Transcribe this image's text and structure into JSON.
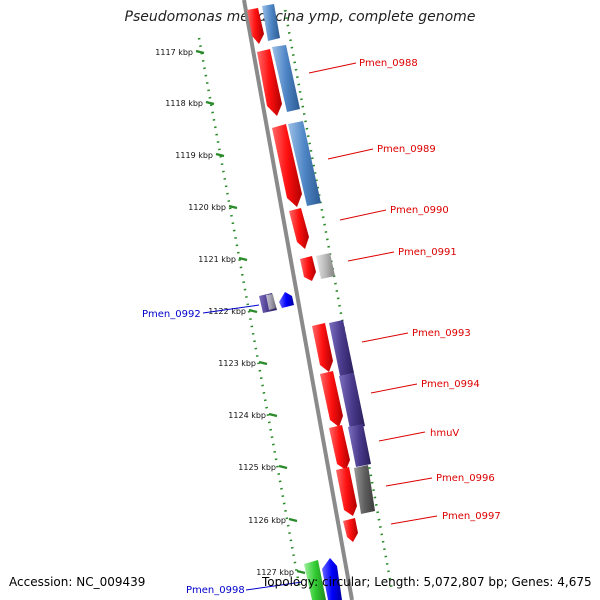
{
  "title": "Pseudomonas mendocina ymp, complete genome",
  "footer": {
    "accession": "Accession: NC_009439",
    "summary": "Topology: circular; Length: 5,072,807 bp; Genes: 4,675"
  },
  "colors": {
    "red": "#ff1a1a",
    "steelblue": "#4f86c6",
    "purple": "#4a3a8c",
    "gray": "#9e9e9e",
    "darkgray": "#606060",
    "blue": "#0000ff",
    "green": "#33cc33",
    "tick": "#2a8a2a",
    "backbone": "#888888",
    "label_red": "#dd0000",
    "label_blue": "#0000cc"
  },
  "ticks": [
    {
      "label": "1117 kbp"
    },
    {
      "label": "1118 kbp"
    },
    {
      "label": "1119 kbp"
    },
    {
      "label": "1120 kbp"
    },
    {
      "label": "1121 kbp"
    },
    {
      "label": "1122 kbp"
    },
    {
      "label": "1123 kbp"
    },
    {
      "label": "1124 kbp"
    },
    {
      "label": "1125 kbp"
    },
    {
      "label": "1126 kbp"
    },
    {
      "label": "1127 kbp"
    }
  ],
  "gene_labels": [
    {
      "text": "Pmen_0988",
      "color": "#dd0000"
    },
    {
      "text": "Pmen_0989",
      "color": "#dd0000"
    },
    {
      "text": "Pmen_0990",
      "color": "#dd0000"
    },
    {
      "text": "Pmen_0991",
      "color": "#dd0000"
    },
    {
      "text": "Pmen_0992",
      "color": "#0000cc"
    },
    {
      "text": "Pmen_0993",
      "color": "#dd0000"
    },
    {
      "text": "Pmen_0994",
      "color": "#dd0000"
    },
    {
      "text": "hmuV",
      "color": "#dd0000"
    },
    {
      "text": "Pmen_0996",
      "color": "#dd0000"
    },
    {
      "text": "Pmen_0997",
      "color": "#dd0000"
    },
    {
      "text": "Pmen_0998",
      "color": "#0000cc"
    }
  ]
}
